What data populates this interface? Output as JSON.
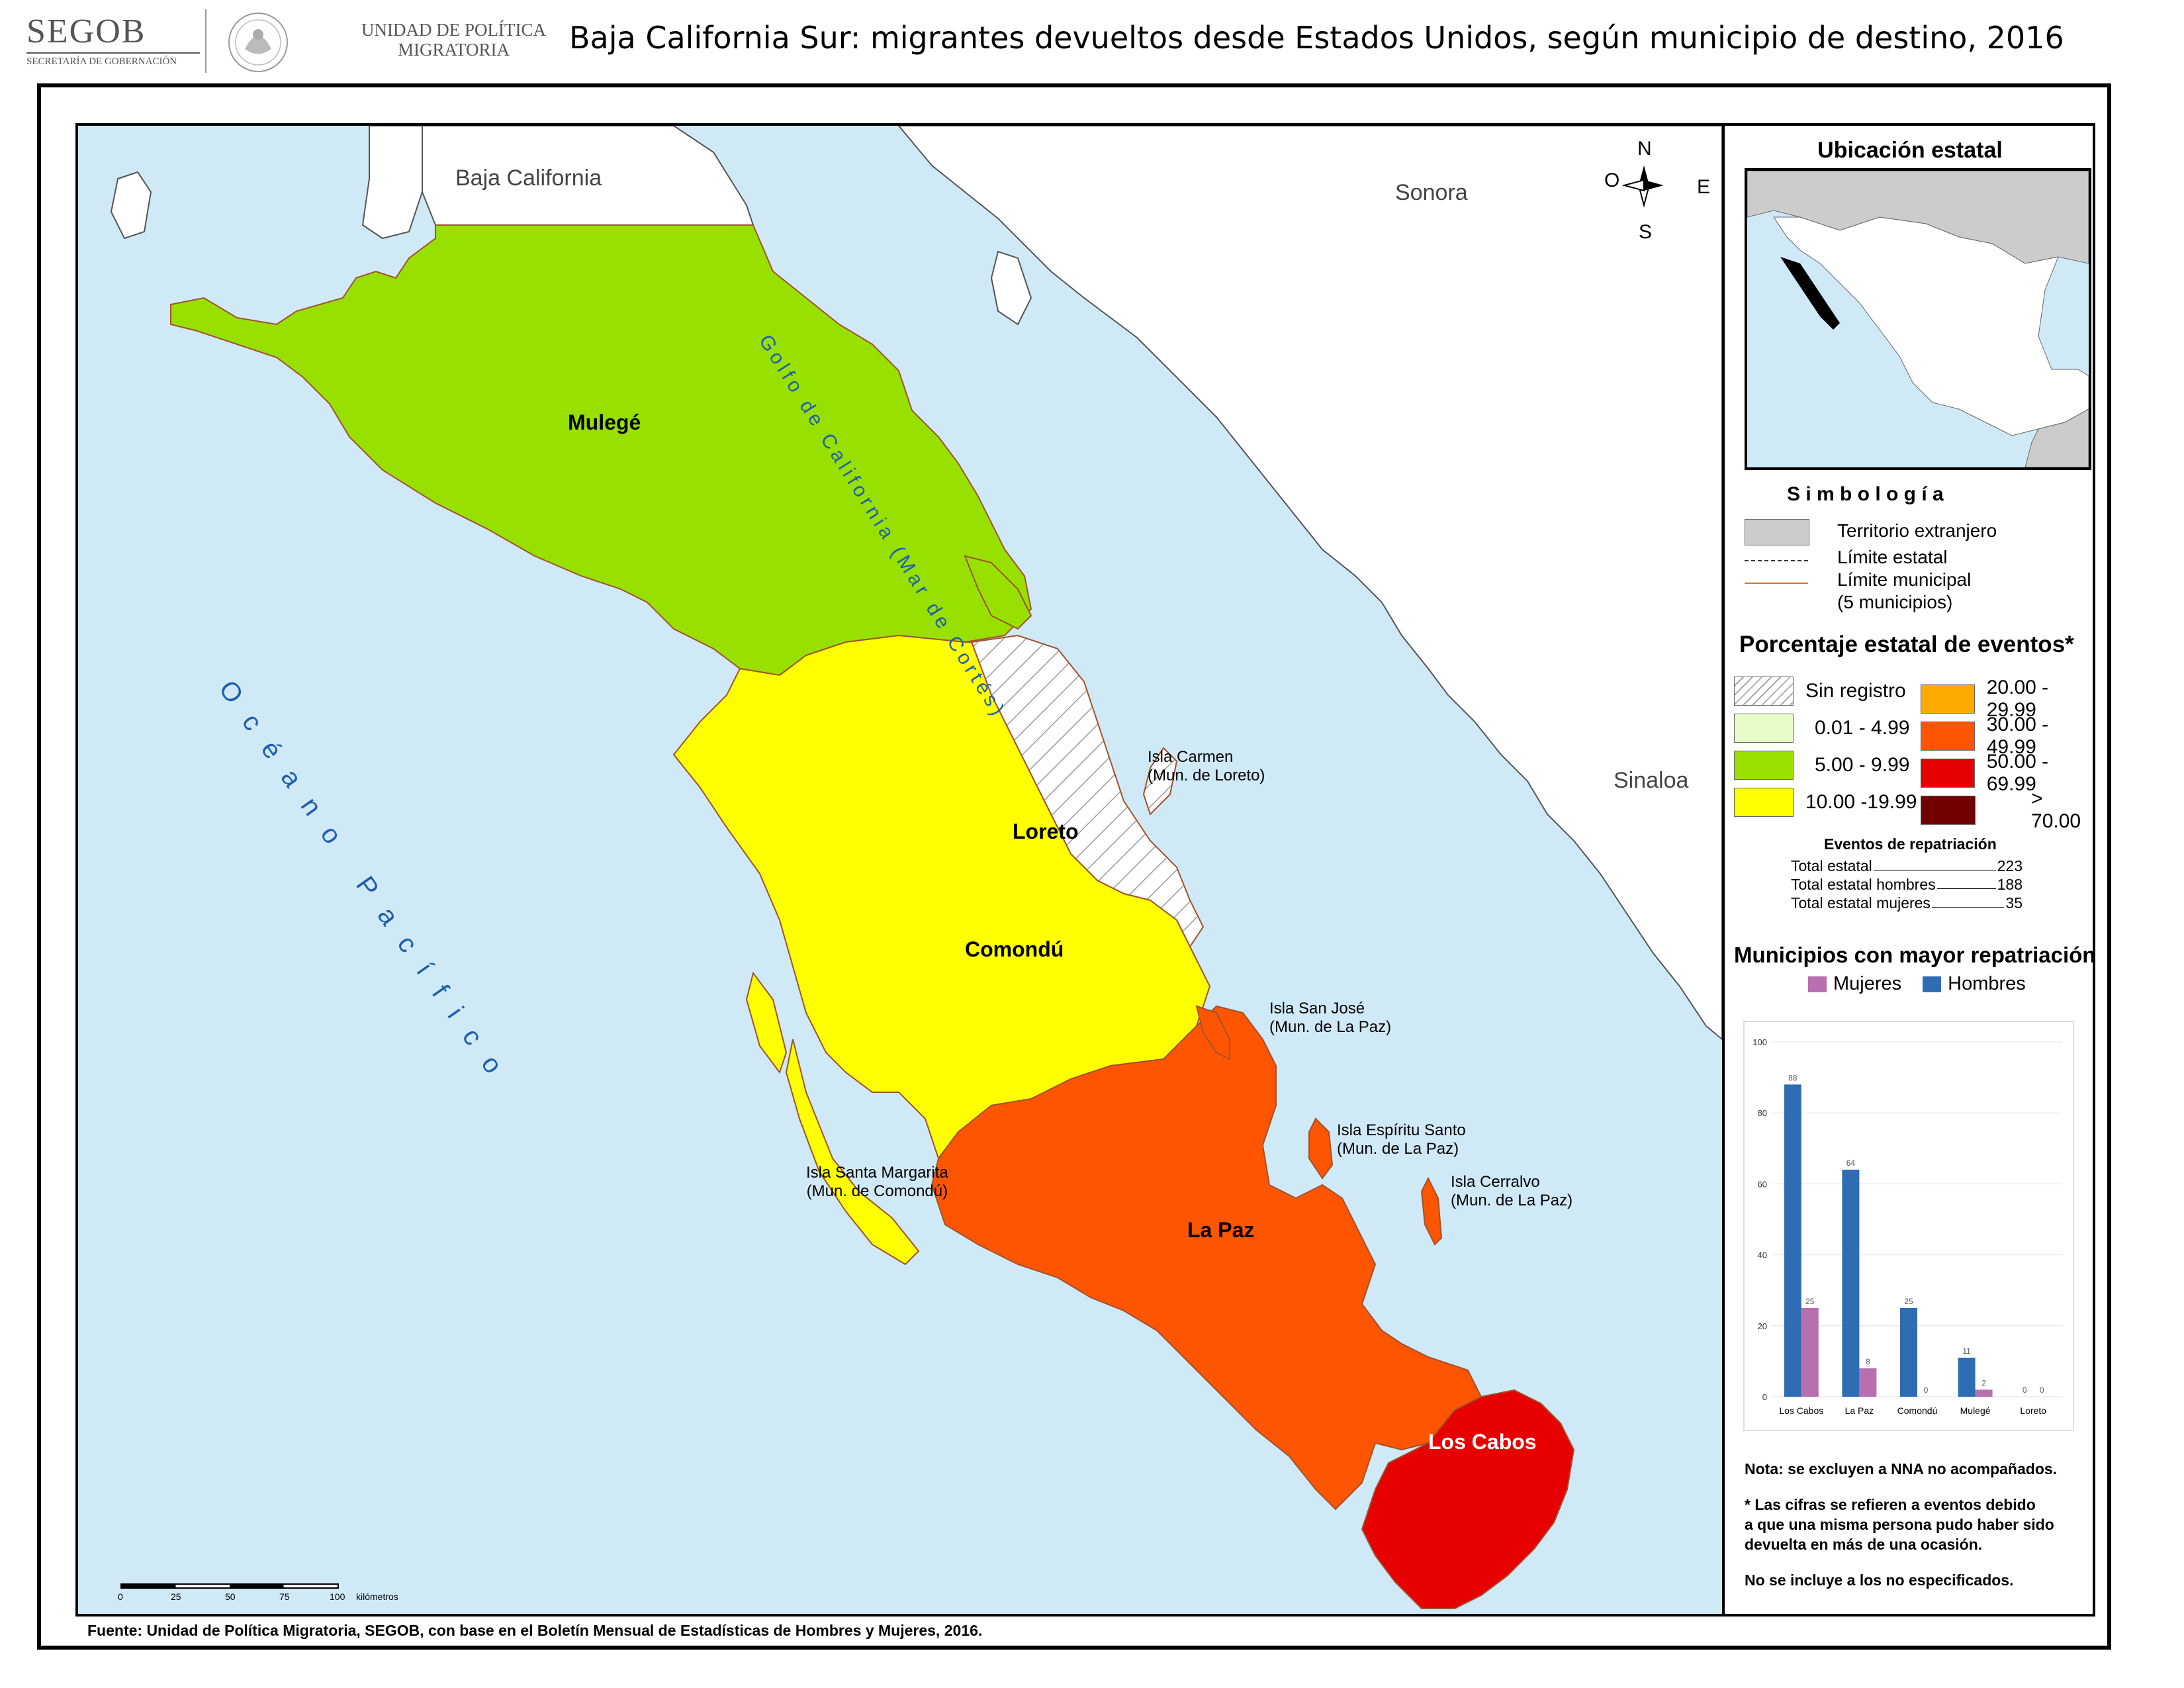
{
  "header": {
    "segob": "SEGOB",
    "segob_sub": "SECRETARÍA DE GOBERNACIÓN",
    "upm_line1": "UNIDAD DE POLÍTICA",
    "upm_line2": "MIGRATORIA",
    "title": "Baja California Sur: migrantes devueltos desde Estados Unidos, según municipio de destino, 2016"
  },
  "map": {
    "neighbors": {
      "baja_california": "Baja California",
      "sonora": "Sonora",
      "sinaloa": "Sinaloa"
    },
    "gulf_label": "Golfo de California (Mar de Cortés)",
    "ocean_label": "Océano Pacífico",
    "compass": {
      "n": "N",
      "s": "S",
      "e": "E",
      "o": "O"
    },
    "municipalities": {
      "mulege": "Mulegé",
      "loreto": "Loreto",
      "comondu": "Comondú",
      "lapaz": "La Paz",
      "loscabos": "Los Cabos"
    },
    "islands": {
      "carmen_1": "Isla Carmen",
      "carmen_2": "(Mun. de Loreto)",
      "sanjose_1": "Isla San José",
      "sanjose_2": "(Mun. de La Paz)",
      "espiritu_1": "Isla Espíritu Santo",
      "espiritu_2": "(Mun. de La Paz)",
      "cerralvo_1": "Isla Cerralvo",
      "cerralvo_2": "(Mun. de La Paz)",
      "margarita_1": "Isla Santa Margarita",
      "margarita_2": "(Mun. de Comondú)"
    },
    "scale": {
      "ticks": [
        "0",
        "25",
        "50",
        "75",
        "100"
      ],
      "unit": "kilómetros"
    },
    "colors": {
      "water": "#cfe9f7",
      "mulege": "#98e000",
      "comondu": "#ffff00",
      "lapaz": "#ff5500",
      "loscabos": "#e60000",
      "land": "#ffffff"
    }
  },
  "panel": {
    "inset_title": "Ubicación estatal",
    "symbology_title": "S i m b o l o g í a",
    "sym_items": {
      "foreign": "Territorio extranjero",
      "state_limit": "Límite estatal",
      "mun_limit": "Límite municipal",
      "mun_count": "(5 municipios)"
    },
    "pct_title": "Porcentaje estatal de eventos*",
    "classes": [
      {
        "label": "Sin registro",
        "color": "hatch"
      },
      {
        "label": "0.01  - 4.99",
        "color": "#e8fcc8"
      },
      {
        "label": "5.00  - 9.99",
        "color": "#98e000"
      },
      {
        "label": "10.00 -19.99",
        "color": "#ffff00"
      },
      {
        "label": "20.00 - 29.99",
        "color": "#ffaa00"
      },
      {
        "label": "30.00 - 49.99",
        "color": "#ff5500"
      },
      {
        "label": "50.00 - 69.99",
        "color": "#e60000"
      },
      {
        "label": "> 70.00",
        "color": "#730000"
      }
    ],
    "totals_title": "Eventos de repatriación",
    "totals": [
      {
        "label": "Total estatal",
        "value": "223"
      },
      {
        "label": "Total estatal hombres",
        "value": "188"
      },
      {
        "label": "Total estatal mujeres",
        "value": "35"
      }
    ],
    "chart_title": "Municipios con mayor repatriación",
    "notes": {
      "n1": "Nota: se excluyen a NNA no acompañados.",
      "n2a": "* Las cifras se refieren a eventos debido",
      "n2b": "a que una misma persona pudo haber sido",
      "n2c": "devuelta en más de una ocasión.",
      "n3": "No se incluye a los no especificados."
    }
  },
  "footer": {
    "source": "Fuente: Unidad de Política Migratoria, SEGOB, con base en el Boletín Mensual de Estadísticas de Hombres y Mujeres, 2016."
  },
  "chart_data": {
    "type": "bar",
    "categories": [
      "Los Cabos",
      "La Paz",
      "Comondú",
      "Mulegé",
      "Loreto"
    ],
    "series": [
      {
        "name": "Hombres",
        "values": [
          88,
          64,
          25,
          11,
          0
        ],
        "color": "#2e6db4"
      },
      {
        "name": "Mujeres",
        "values": [
          25,
          8,
          0,
          2,
          0
        ],
        "color": "#b86fb0"
      }
    ],
    "ylim": [
      0,
      100
    ],
    "yticks": [
      0,
      20,
      40,
      60,
      80,
      100
    ],
    "legend": "top",
    "grid": true
  }
}
